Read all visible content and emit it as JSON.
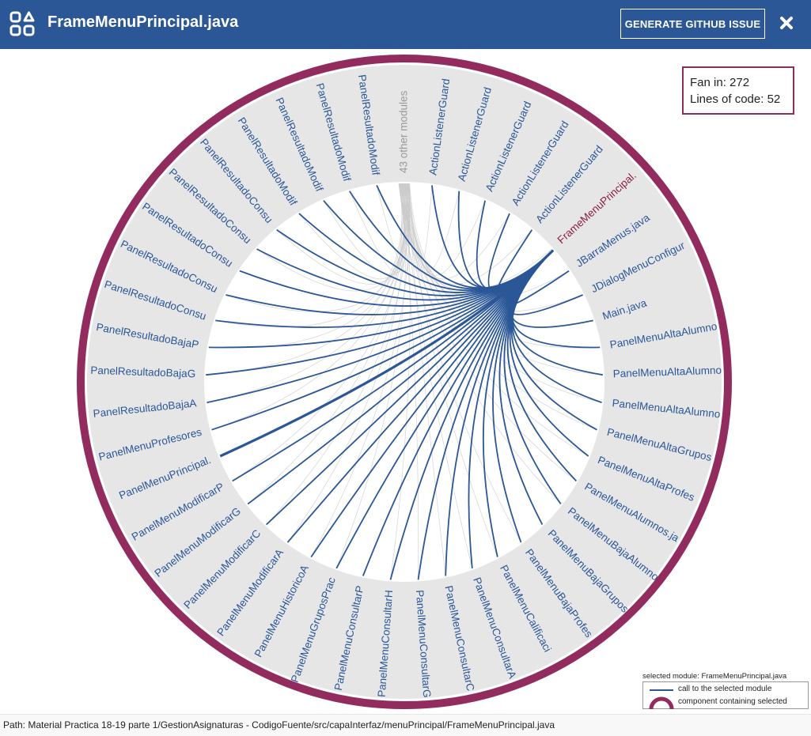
{
  "header": {
    "title": "FrameMenuPrincipal.java",
    "github_button": "GENERATE GITHUB ISSUE",
    "close_icon": "close-icon",
    "app_icon": "grid-apps-icon"
  },
  "info": {
    "fan_in_label": "Fan in: 272",
    "loc_label": "Lines of code: 52"
  },
  "chord": {
    "selected_module": "FrameMenuPrincipal.",
    "modules": [
      "43 other modules",
      "ActionListenerGuard",
      "ActionListenerGuard",
      "ActionListenerGuard",
      "ActionListenerGuard",
      "ActionListenerGuard",
      "FrameMenuPrincipal.",
      "JBarraMenus.java",
      "JDialogMenuConfigur",
      "Main.java",
      "PanelMenuAltaAlumno",
      "PanelMenuAltaAlumno",
      "PanelMenuAltaAlumno",
      "PanelMenuAltaGrupos",
      "PanelMenuAltaProfes",
      "PanelMenuAlumnos.ja",
      "PanelMenuBajaAlumno",
      "PanelMenuBajaGrupos",
      "PanelMenuBajaProfes",
      "PanelMenuCalificaci",
      "PanelMenuConsultarA",
      "PanelMenuConsultarC",
      "PanelMenuConsultarG",
      "PanelMenuConsultarH",
      "PanelMenuConsultarP",
      "PanelMenuGruposPrac",
      "PanelMenuHistoricoA",
      "PanelMenuModificarA",
      "PanelMenuModificarC",
      "PanelMenuModificarG",
      "PanelMenuModificarP",
      "PanelMenuPrincipal.",
      "PanelMenuProfesores",
      "PanelResultadoBajaA",
      "PanelResultadoBajaG",
      "PanelResultadoBajaP",
      "PanelResultadoConsu",
      "PanelResultadoConsu",
      "PanelResultadoConsu",
      "PanelResultadoConsu",
      "PanelResultadoConsu",
      "PanelResultadoModif",
      "PanelResultadoModif",
      "PanelResultadoModif",
      "PanelResultadoModif"
    ],
    "colors": {
      "ring": "#922b5e",
      "chord": "#2b5797",
      "label": "#2b5797",
      "selected_label": "#8a1e45",
      "other_label": "#9a9a9a",
      "other_chord": "#c8c8c8",
      "band": "#e6e6e6"
    }
  },
  "legend": {
    "title": "selected module: FrameMenuPrincipal.java",
    "call_label": "call to the selected module",
    "component_label": "component containing selected"
  },
  "footer": {
    "path": "Path: Material Practica 18-19 parte 1/GestionAsignaturas - CodigoFuente/src/capaInterfaz/menuPrincipal/FrameMenuPrincipal.java"
  }
}
